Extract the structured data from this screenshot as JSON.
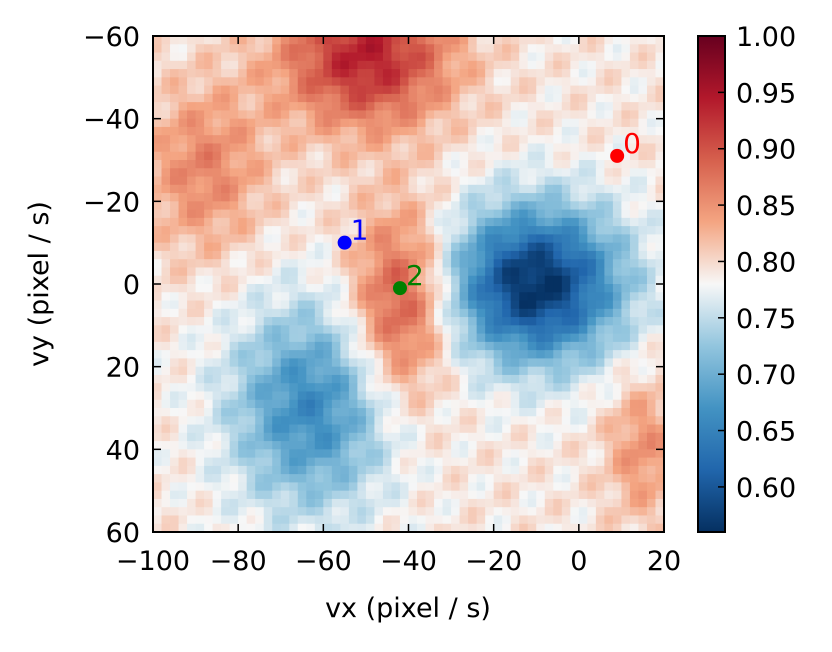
{
  "chart_data": {
    "type": "heatmap",
    "title": "",
    "xlabel": "vx (pixel / s)",
    "ylabel": "vy (pixel / s)",
    "xlim": [
      -100,
      20
    ],
    "ylim": [
      -60,
      60
    ],
    "y_inverted": true,
    "xticks": [
      -100,
      -80,
      -60,
      -40,
      -20,
      0,
      20
    ],
    "yticks": [
      -60,
      -40,
      -20,
      0,
      20,
      40,
      60
    ],
    "xtick_labels": [
      "−100",
      "−80",
      "−60",
      "−40",
      "−20",
      "0",
      "20"
    ],
    "ytick_labels": [
      "−60",
      "−40",
      "−20",
      "0",
      "20",
      "40",
      "60"
    ],
    "colormap": "RdBu_r",
    "colorbar": {
      "range": [
        0.56,
        1.0
      ],
      "ticks": [
        0.6,
        0.65,
        0.7,
        0.75,
        0.8,
        0.85,
        0.9,
        0.95,
        1.0
      ],
      "tick_labels": [
        "0.60",
        "0.65",
        "0.70",
        "0.75",
        "0.80",
        "0.85",
        "0.90",
        "0.95",
        "1.00"
      ]
    },
    "points": [
      {
        "label": "0",
        "vx": 9,
        "vy": -31,
        "color": "#ff0000"
      },
      {
        "label": "1",
        "vx": -55,
        "vy": -10,
        "color": "#0000ff"
      },
      {
        "label": "2",
        "vx": -42,
        "vy": 1,
        "color": "#008000"
      }
    ],
    "features": [
      {
        "kind": "min",
        "vx": -10,
        "vy": 0,
        "value": 0.56,
        "sx": 14,
        "sy": 13
      },
      {
        "kind": "min",
        "vx": -63,
        "vy": 30,
        "value": 0.66,
        "sx": 13,
        "sy": 17
      },
      {
        "kind": "max",
        "vx": -50,
        "vy": -55,
        "value": 0.94,
        "sx": 14,
        "sy": 12
      },
      {
        "kind": "max",
        "vx": -42,
        "vy": 5,
        "value": 0.91,
        "sx": 8,
        "sy": 16
      },
      {
        "kind": "max",
        "vx": -88,
        "vy": -28,
        "value": 0.86,
        "sx": 10,
        "sy": 14
      },
      {
        "kind": "max",
        "vx": 15,
        "vy": 40,
        "value": 0.85,
        "sx": 6,
        "sy": 12
      }
    ]
  }
}
